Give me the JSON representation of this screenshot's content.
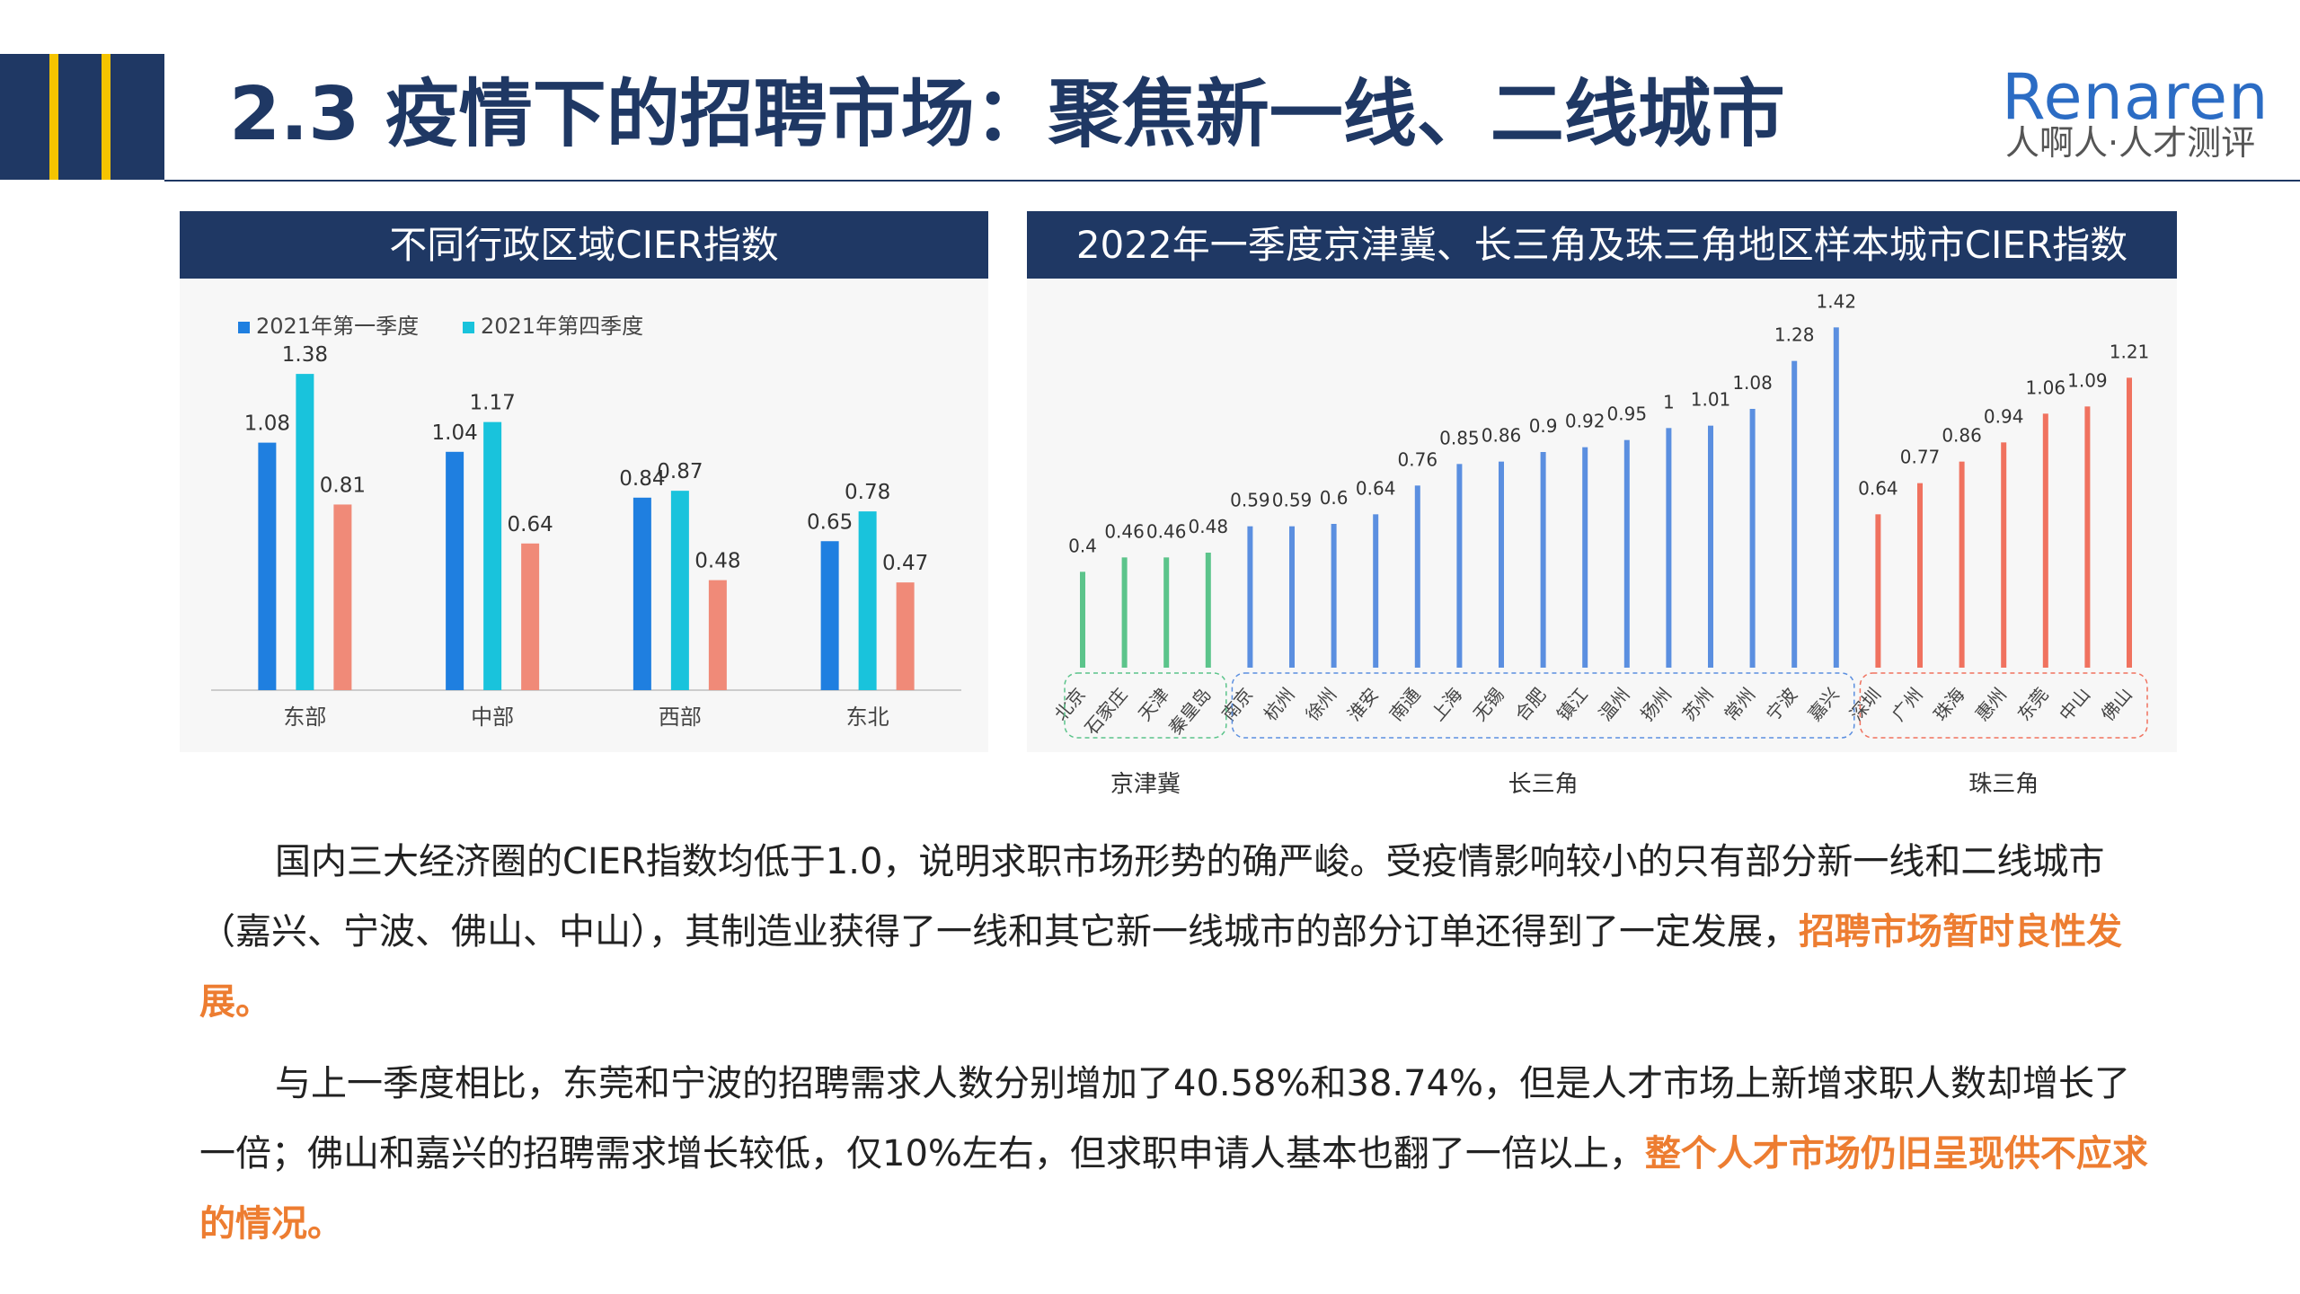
{
  "header": {
    "title": "2.3 疫情下的招聘市场：聚焦新一线、二线城市",
    "logo_en": "Renaren",
    "logo_cn": "人啊人·人才测评"
  },
  "colors": {
    "navy": "#1f3864",
    "accent_yellow": "#f5c400",
    "highlight_orange": "#ed7d31",
    "bar_q1": "#1f7fe0",
    "bar_q4": "#19c3dc",
    "bar_orange": "#f08a78",
    "city_green": "#5cc48b",
    "city_blue": "#5b8fe0",
    "city_red": "#f0725f"
  },
  "chart_data": [
    {
      "type": "bar",
      "title": "不同行政区域CIER指数",
      "categories": [
        "东部",
        "中部",
        "西部",
        "东北"
      ],
      "series": [
        {
          "name": "2021年第一季度",
          "values": [
            1.08,
            1.04,
            0.84,
            0.65
          ],
          "color": "#1f7fe0"
        },
        {
          "name": "2021年第四季度",
          "values": [
            1.38,
            1.17,
            0.87,
            0.78
          ],
          "color": "#19c3dc"
        },
        {
          "name": "",
          "values": [
            0.81,
            0.64,
            0.48,
            0.47
          ],
          "color": "#f08a78"
        }
      ],
      "ylim": [
        0,
        1.6
      ],
      "legend": "top-left",
      "grid": false
    },
    {
      "type": "bar",
      "title": "2022年一季度京津冀、长三角及珠三角地区样本城市CIER指数",
      "categories": [
        "北京",
        "石家庄",
        "天津",
        "秦皇岛",
        "南京",
        "杭州",
        "徐州",
        "淮安",
        "南通",
        "上海",
        "无锡",
        "合肥",
        "镇江",
        "温州",
        "扬州",
        "苏州",
        "常州",
        "宁波",
        "嘉兴",
        "深圳",
        "广州",
        "珠海",
        "惠州",
        "东莞",
        "中山",
        "佛山"
      ],
      "values": [
        0.4,
        0.46,
        0.46,
        0.48,
        0.59,
        0.59,
        0.6,
        0.64,
        0.76,
        0.85,
        0.86,
        0.9,
        0.92,
        0.95,
        1,
        1.01,
        1.08,
        1.28,
        1.42,
        0.64,
        0.77,
        0.86,
        0.94,
        1.06,
        1.09,
        1.21
      ],
      "labels": [
        "0.4",
        "0.46",
        "0.46",
        "0.48",
        "0.59",
        "0.59",
        "0.6",
        "0.64",
        "0.76",
        "0.85",
        "0.86",
        "0.9",
        "0.92",
        "0.95",
        "1",
        "1.01",
        "1.08",
        "1.28",
        "1.42",
        "0.64",
        "0.77",
        "0.86",
        "0.94",
        "1.06",
        "1.09",
        "1.21"
      ],
      "groups": [
        {
          "name": "京津冀",
          "start": 0,
          "end": 3,
          "color": "#5cc48b"
        },
        {
          "name": "长三角",
          "start": 4,
          "end": 18,
          "color": "#5b8fe0"
        },
        {
          "name": "珠三角",
          "start": 19,
          "end": 25,
          "color": "#f0725f"
        }
      ],
      "ylim": [
        0,
        1.5
      ],
      "grid": false
    }
  ],
  "paragraphs": [
    {
      "text": "国内三大经济圈的CIER指数均低于1.0，说明求职市场形势的确严峻。受疫情影响较小的只有部分新一线和二线城市（嘉兴、宁波、佛山、中山），其制造业获得了一线和其它新一线城市的部分订单还得到了一定发展，",
      "highlight": "招聘市场暂时良性发展。"
    },
    {
      "text": "与上一季度相比，东莞和宁波的招聘需求人数分别增加了40.58%和38.74%，但是人才市场上新增求职人数却增长了一倍；佛山和嘉兴的招聘需求增长较低，仅10%左右，但求职申请人基本也翻了一倍以上，",
      "highlight": "整个人才市场仍旧呈现供不应求的情况。"
    }
  ]
}
